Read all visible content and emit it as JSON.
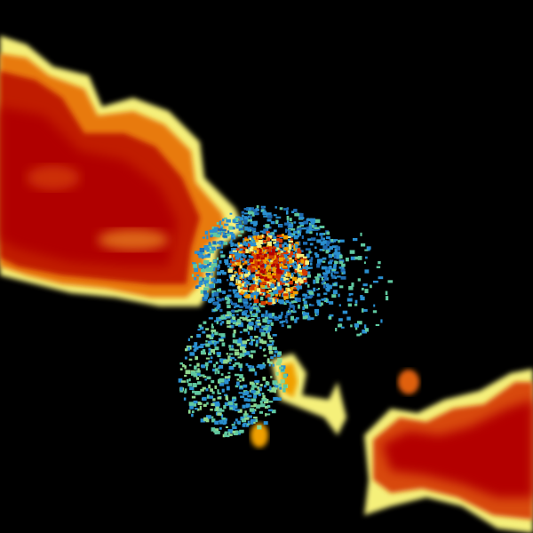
{
  "image": {
    "kind": "radar-reflectivity",
    "background": "#000000",
    "palette": {
      "heavy": "#b30000",
      "strong": "#d23a00",
      "moderate": "#f0a000",
      "light": "#f5f07a",
      "weak": "#60c8a0",
      "trace": "#2a8fd0"
    }
  }
}
